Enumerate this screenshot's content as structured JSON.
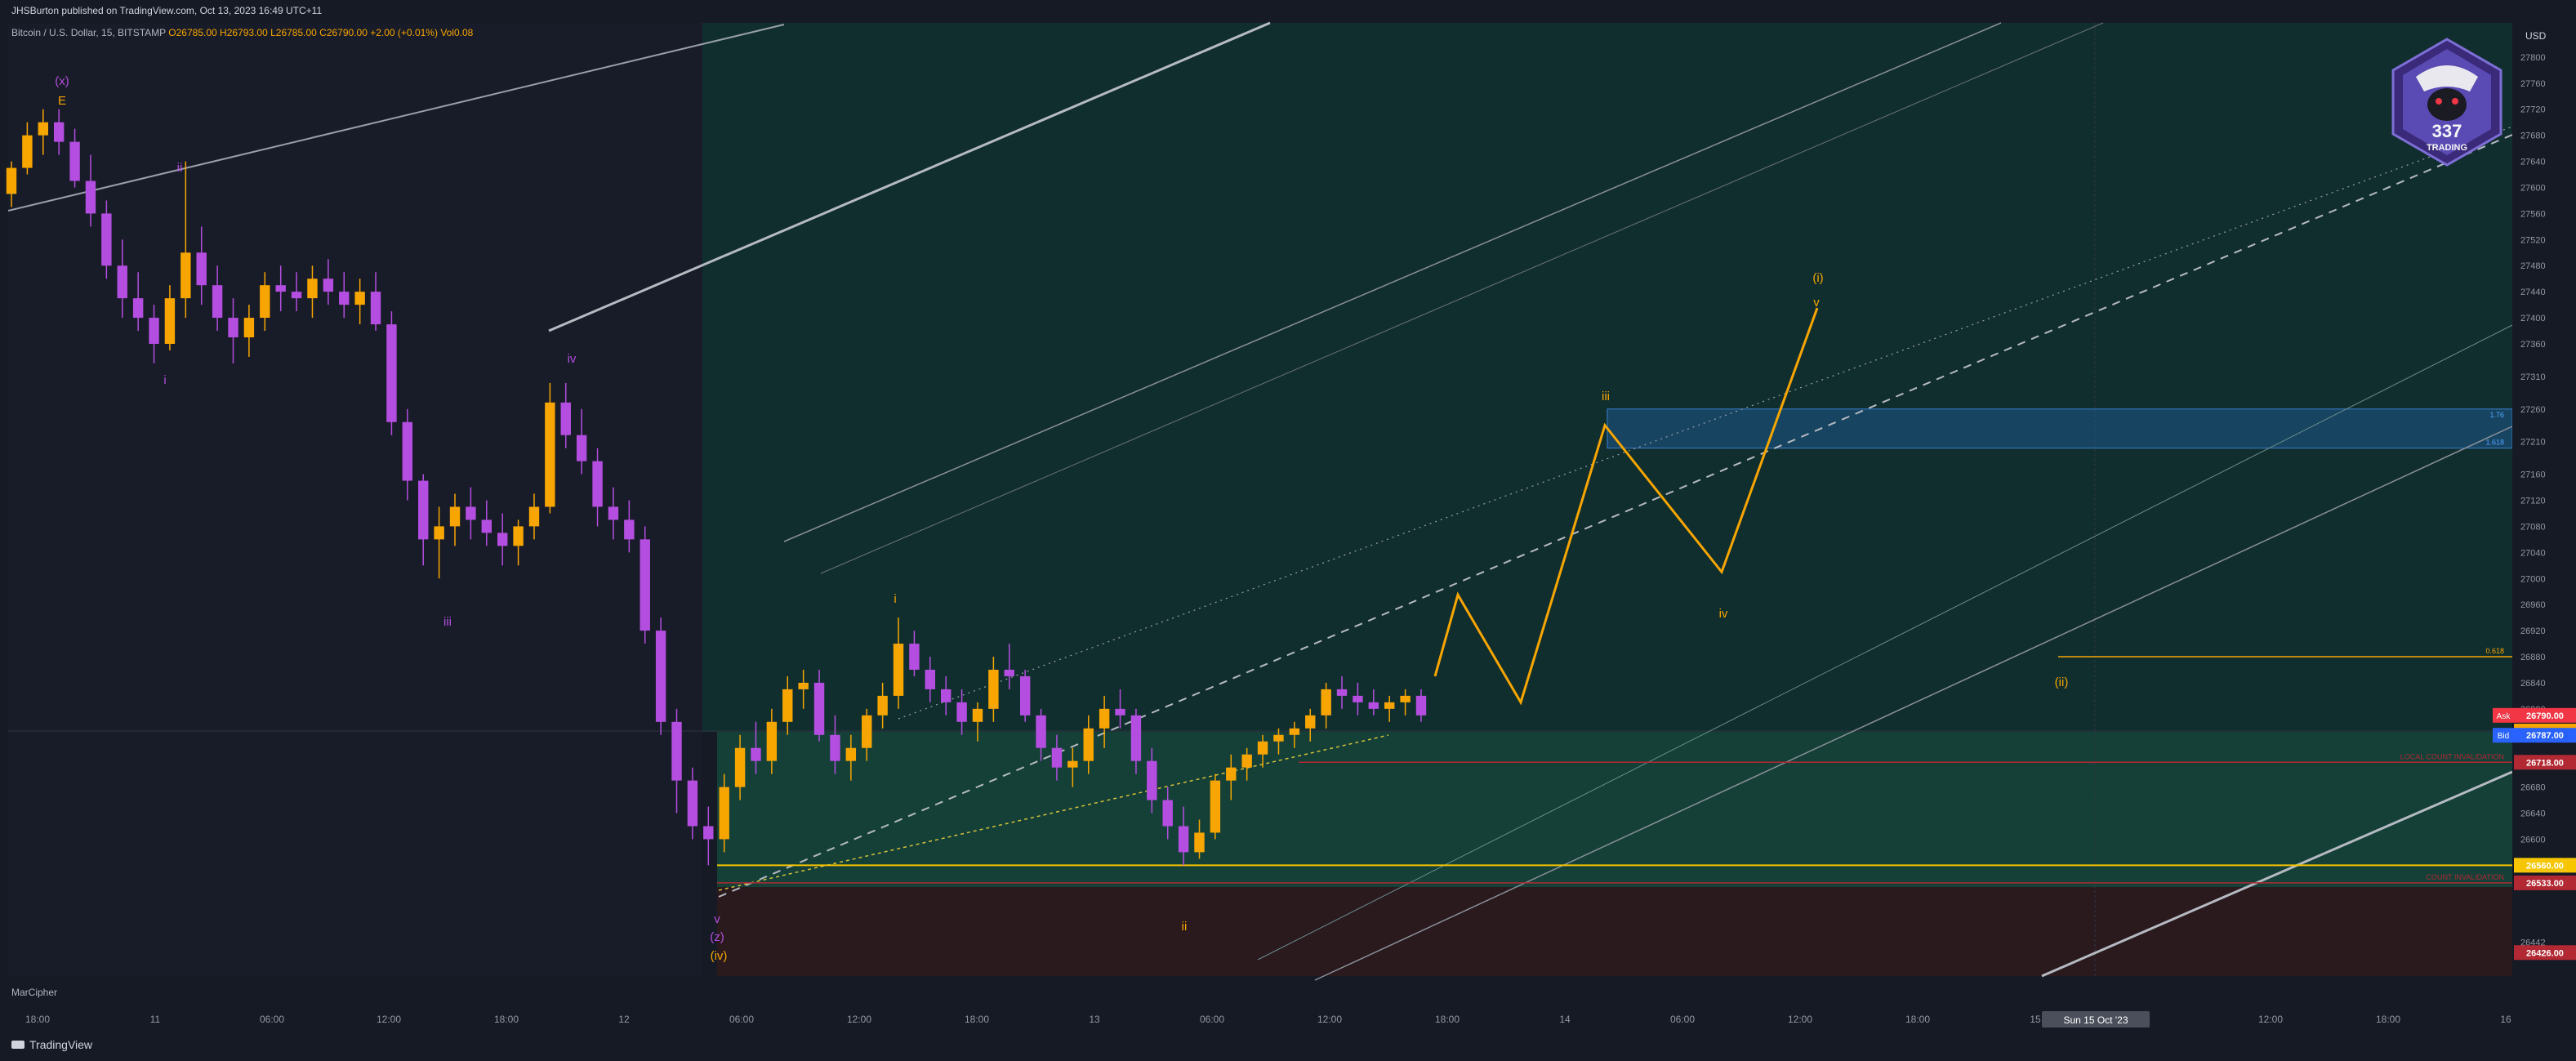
{
  "header": {
    "publisher": "JHSBurton published on TradingView.com, Oct 13, 2023 16:49 UTC+11"
  },
  "legend": {
    "symbol": "Bitcoin / U.S. Dollar, 15, BITSTAMP",
    "open": "O26785.00",
    "high": "H26793.00",
    "low": "L26785.00",
    "close": "C26790.00",
    "change": "+2.00 (+0.01%)",
    "vol": "Vol0.08"
  },
  "indicator": {
    "name": "MarCipher"
  },
  "footer": {
    "brand": "TradingView"
  },
  "logo": {
    "text_top": "337",
    "text_bottom": "TRADING"
  },
  "axis": {
    "currency": "USD",
    "price_ticks": [
      27800,
      27760,
      27720,
      27680,
      27640,
      27600,
      27560,
      27520,
      27480,
      27440,
      27400,
      27360,
      27310,
      27260,
      27210,
      27160,
      27120,
      27080,
      27040,
      27000,
      26960,
      26920,
      26880,
      26840,
      26800,
      26680,
      26640,
      26600,
      26442
    ],
    "time_ticks": [
      "18:00",
      "11",
      "06:00",
      "12:00",
      "18:00",
      "12",
      "06:00",
      "12:00",
      "18:00",
      "13",
      "06:00",
      "12:00",
      "18:00",
      "14",
      "06:00",
      "12:00",
      "18:00",
      "15",
      "03:00",
      "12:00",
      "18:00",
      "16"
    ],
    "crosshair_time": "Sun 15 Oct '23",
    "badges": [
      {
        "label": "Ask",
        "value": "26790.00",
        "color": "#f23645"
      },
      {
        "label": "",
        "value": "26791",
        "color": "#f7a600"
      },
      {
        "label": "Bid",
        "value": "26787.00",
        "color": "#2962ff"
      },
      {
        "label": "",
        "value": "26718.00",
        "color": "#b22833"
      },
      {
        "label": "",
        "value": "26560.00",
        "color": "#f7c600"
      },
      {
        "label": "",
        "value": "26533.00",
        "color": "#b22833"
      },
      {
        "label": "",
        "value": "26426.00",
        "color": "#b22833"
      }
    ]
  },
  "chart_data": {
    "type": "candlestick",
    "symbol": "BTCUSD",
    "exchange": "BITSTAMP",
    "interval": "15",
    "ylim": [
      26390,
      27850
    ],
    "grid": false,
    "levels": [
      {
        "price": 26880,
        "label": "0.618",
        "color": "#f7a600"
      },
      {
        "price": 26718,
        "label": "LOCAL COUNT INVALIDATION",
        "color": "#b22833"
      },
      {
        "price": 26560,
        "label": "",
        "color": "#f7c600"
      },
      {
        "price": 26533,
        "label": "COUNT INVALIDATION",
        "color": "#b22833"
      }
    ],
    "zones": [
      {
        "from": 27200,
        "to": 27260,
        "color": "#1f5fa0",
        "labels": [
          "1.76",
          "1.618"
        ]
      }
    ],
    "wave_labels": [
      {
        "text": "(x)",
        "color": "#b44ee0"
      },
      {
        "text": "E",
        "color": "#f7a600"
      },
      {
        "text": "ii",
        "color": "#b44ee0"
      },
      {
        "text": "i",
        "color": "#b44ee0"
      },
      {
        "text": "iii",
        "color": "#b44ee0"
      },
      {
        "text": "iv",
        "color": "#b44ee0"
      },
      {
        "text": "v",
        "color": "#b44ee0"
      },
      {
        "text": "(z)",
        "color": "#b44ee0"
      },
      {
        "text": "(iv)",
        "color": "#f7a600"
      },
      {
        "text": "i",
        "color": "#f7a600"
      },
      {
        "text": "ii",
        "color": "#f7a600"
      },
      {
        "text": "iii",
        "color": "#f7a600"
      },
      {
        "text": "iv",
        "color": "#f7a600"
      },
      {
        "text": "v",
        "color": "#f7a600"
      },
      {
        "text": "(i)",
        "color": "#f7a600"
      },
      {
        "text": "(ii)",
        "color": "#f7a600"
      }
    ],
    "projection": {
      "points": [
        {
          "t": "13 18:00",
          "price": 26850
        },
        {
          "t": "13 19:00",
          "price": 26975
        },
        {
          "t": "13 21:00",
          "price": 26810
        },
        {
          "t": "14 01:00",
          "price": 27235
        },
        {
          "t": "14 06:00",
          "price": 27010
        },
        {
          "t": "14 08:30",
          "price": 27415
        }
      ],
      "color": "#f7a600"
    },
    "series": [
      {
        "name": "",
        "candles": [
          [
            27590,
            27640,
            27570,
            27630
          ],
          [
            27630,
            27700,
            27620,
            27680
          ],
          [
            27680,
            27720,
            27650,
            27700
          ],
          [
            27700,
            27720,
            27650,
            27670
          ],
          [
            27670,
            27690,
            27600,
            27610
          ],
          [
            27610,
            27650,
            27540,
            27560
          ],
          [
            27560,
            27580,
            27460,
            27480
          ],
          [
            27480,
            27520,
            27400,
            27430
          ],
          [
            27430,
            27470,
            27380,
            27400
          ],
          [
            27400,
            27420,
            27330,
            27360
          ],
          [
            27360,
            27450,
            27350,
            27430
          ],
          [
            27430,
            27640,
            27400,
            27500
          ],
          [
            27500,
            27540,
            27420,
            27450
          ],
          [
            27450,
            27480,
            27380,
            27400
          ],
          [
            27400,
            27430,
            27330,
            27370
          ],
          [
            27370,
            27420,
            27340,
            27400
          ],
          [
            27400,
            27470,
            27380,
            27450
          ],
          [
            27450,
            27480,
            27410,
            27440
          ],
          [
            27440,
            27470,
            27410,
            27430
          ],
          [
            27430,
            27480,
            27400,
            27460
          ],
          [
            27460,
            27490,
            27420,
            27440
          ],
          [
            27440,
            27470,
            27400,
            27420
          ],
          [
            27420,
            27460,
            27390,
            27440
          ],
          [
            27440,
            27470,
            27380,
            27390
          ],
          [
            27390,
            27410,
            27220,
            27240
          ],
          [
            27240,
            27260,
            27120,
            27150
          ],
          [
            27150,
            27160,
            27020,
            27060
          ],
          [
            27060,
            27110,
            27000,
            27080
          ],
          [
            27080,
            27130,
            27050,
            27110
          ],
          [
            27110,
            27140,
            27060,
            27090
          ],
          [
            27090,
            27120,
            27050,
            27070
          ],
          [
            27070,
            27100,
            27020,
            27050
          ],
          [
            27050,
            27090,
            27020,
            27080
          ],
          [
            27080,
            27130,
            27060,
            27110
          ],
          [
            27110,
            27300,
            27100,
            27270
          ],
          [
            27270,
            27300,
            27200,
            27220
          ],
          [
            27220,
            27260,
            27160,
            27180
          ],
          [
            27180,
            27200,
            27080,
            27110
          ],
          [
            27110,
            27140,
            27060,
            27090
          ],
          [
            27090,
            27120,
            27040,
            27060
          ],
          [
            27060,
            27080,
            26900,
            26920
          ],
          [
            26920,
            26940,
            26760,
            26780
          ],
          [
            26780,
            26800,
            26640,
            26690
          ],
          [
            26690,
            26710,
            26600,
            26620
          ],
          [
            26620,
            26650,
            26560,
            26600
          ],
          [
            26600,
            26700,
            26580,
            26680
          ],
          [
            26680,
            26760,
            26660,
            26740
          ],
          [
            26740,
            26780,
            26700,
            26720
          ],
          [
            26720,
            26800,
            26700,
            26780
          ],
          [
            26780,
            26850,
            26760,
            26830
          ],
          [
            26830,
            26860,
            26800,
            26840
          ],
          [
            26840,
            26860,
            26750,
            26760
          ],
          [
            26760,
            26790,
            26700,
            26720
          ],
          [
            26720,
            26760,
            26690,
            26740
          ],
          [
            26740,
            26800,
            26720,
            26790
          ],
          [
            26790,
            26840,
            26770,
            26820
          ],
          [
            26820,
            26940,
            26800,
            26900
          ],
          [
            26900,
            26920,
            26850,
            26860
          ],
          [
            26860,
            26880,
            26810,
            26830
          ],
          [
            26830,
            26850,
            26790,
            26810
          ],
          [
            26810,
            26830,
            26760,
            26780
          ],
          [
            26780,
            26810,
            26750,
            26800
          ],
          [
            26800,
            26880,
            26780,
            26860
          ],
          [
            26860,
            26900,
            26830,
            26850
          ],
          [
            26850,
            26860,
            26780,
            26790
          ],
          [
            26790,
            26800,
            26720,
            26740
          ],
          [
            26740,
            26760,
            26690,
            26710
          ],
          [
            26710,
            26740,
            26680,
            26720
          ],
          [
            26720,
            26790,
            26700,
            26770
          ],
          [
            26770,
            26820,
            26740,
            26800
          ],
          [
            26800,
            26830,
            26770,
            26790
          ],
          [
            26790,
            26800,
            26700,
            26720
          ],
          [
            26720,
            26740,
            26640,
            26660
          ],
          [
            26660,
            26680,
            26600,
            26620
          ],
          [
            26620,
            26650,
            26560,
            26580
          ],
          [
            26580,
            26630,
            26570,
            26610
          ],
          [
            26610,
            26700,
            26600,
            26690
          ],
          [
            26690,
            26730,
            26660,
            26710
          ],
          [
            26710,
            26740,
            26690,
            26730
          ],
          [
            26730,
            26760,
            26710,
            26750
          ],
          [
            26750,
            26770,
            26730,
            26760
          ],
          [
            26760,
            26780,
            26740,
            26770
          ],
          [
            26770,
            26800,
            26750,
            26790
          ],
          [
            26790,
            26840,
            26770,
            26830
          ],
          [
            26830,
            26850,
            26800,
            26820
          ],
          [
            26820,
            26840,
            26790,
            26810
          ],
          [
            26810,
            26830,
            26790,
            26800
          ],
          [
            26800,
            26820,
            26780,
            26810
          ],
          [
            26810,
            26830,
            26790,
            26820
          ],
          [
            26820,
            26830,
            26780,
            26790
          ]
        ]
      }
    ]
  }
}
